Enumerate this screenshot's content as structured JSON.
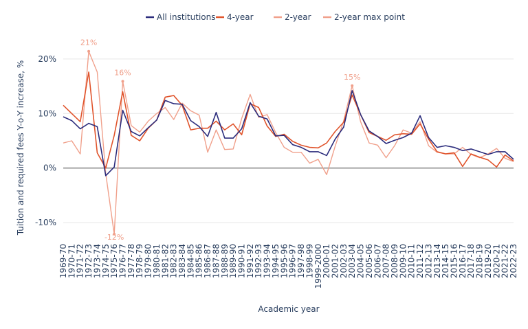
{
  "chart_data": {
    "type": "line",
    "title": "",
    "xlabel": "Academic year",
    "ylabel": "Tuition and required fees Y-o-Y increase, %",
    "ylim": [
      -13,
      23
    ],
    "yticks": [
      -10,
      0,
      10,
      20
    ],
    "ytick_labels": [
      "-10%",
      "0%",
      "10%",
      "20%"
    ],
    "grid": true,
    "legend_position": "top",
    "categories": [
      "1969-70",
      "1970-71",
      "1971-72",
      "1972-73",
      "1973-74",
      "1974-75",
      "1975-76",
      "1976-77",
      "1977-78",
      "1978-79",
      "1979-80",
      "1980-81",
      "1981-82",
      "1982-83",
      "1983-84",
      "1984-85",
      "1985-86",
      "1986-87",
      "1987-88",
      "1988-89",
      "1989-90",
      "1990-91",
      "1991-92",
      "1992-93",
      "1993-94",
      "1994-95",
      "1995-96",
      "1996-97",
      "1997-98",
      "1998-99",
      "1999-2000",
      "2000-01",
      "2001-02",
      "2002-03",
      "2003-04",
      "2004-05",
      "2005-06",
      "2006-07",
      "2007-08",
      "2008-09",
      "2009-10",
      "2010-11",
      "2011-12",
      "2012-13",
      "2013-14",
      "2014-15",
      "2015-16",
      "2016-17",
      "2017-18",
      "2018-19",
      "2019-20",
      "2020-21",
      "2021-22",
      "2022-23"
    ],
    "series": [
      {
        "name": "All institutions",
        "color": "#2b2c7c",
        "values": [
          9.4,
          8.7,
          7.2,
          8.2,
          7.6,
          -1.4,
          0.2,
          10.6,
          6.7,
          5.9,
          7.4,
          8.8,
          12.4,
          11.8,
          11.7,
          8.7,
          7.6,
          5.8,
          10.2,
          5.5,
          5.5,
          7.2,
          12.0,
          9.5,
          9.0,
          5.9,
          6.0,
          4.3,
          3.8,
          3.0,
          3.0,
          2.3,
          5.3,
          7.5,
          14.2,
          9.8,
          6.8,
          5.8,
          4.5,
          5.1,
          5.6,
          6.4,
          9.6,
          5.6,
          3.8,
          4.1,
          3.8,
          3.2,
          3.5,
          3.0,
          2.5,
          3.0,
          3.0,
          1.6
        ]
      },
      {
        "name": "4-year",
        "color": "#e0542c",
        "values": [
          11.5,
          10.0,
          8.5,
          17.6,
          2.8,
          0.0,
          6.0,
          14.0,
          6.0,
          5.0,
          7.3,
          8.8,
          13.0,
          13.3,
          11.5,
          7.0,
          7.3,
          7.3,
          8.6,
          7.0,
          8.1,
          6.1,
          11.8,
          11.1,
          7.7,
          5.8,
          6.2,
          4.9,
          4.2,
          3.8,
          3.7,
          4.6,
          6.7,
          8.4,
          13.4,
          9.8,
          6.5,
          5.8,
          5.1,
          6.1,
          6.3,
          6.2,
          8.1,
          5.3,
          3.0,
          2.6,
          2.8,
          0.3,
          2.6,
          2.0,
          1.5,
          0.2,
          2.4,
          1.3
        ]
      },
      {
        "name": "2-year",
        "color": "#f0a08b",
        "values": [
          4.6,
          5.0,
          2.6,
          21.4,
          17.6,
          -1.0,
          -12.1,
          15.9,
          7.8,
          6.6,
          8.6,
          10.0,
          11.1,
          8.9,
          11.9,
          10.5,
          9.7,
          2.9,
          7.0,
          3.4,
          3.5,
          9.1,
          13.5,
          9.3,
          9.8,
          6.5,
          3.8,
          2.9,
          2.9,
          0.9,
          1.6,
          -1.2,
          4.0,
          8.6,
          15.1,
          8.5,
          4.6,
          4.2,
          1.9,
          4.1,
          7.0,
          6.4,
          8.5,
          4.1,
          2.9,
          2.6,
          2.6,
          3.8,
          2.5,
          1.9,
          2.6,
          3.6,
          1.8,
          1.2
        ]
      }
    ],
    "max_points": {
      "name": "2-year max point",
      "color": "#f0a08b",
      "points": [
        {
          "x": "1972-73",
          "y": 21.4,
          "label": "21%"
        },
        {
          "x": "1975-76",
          "y": -12.1,
          "label": "-12%"
        },
        {
          "x": "1976-77",
          "y": 15.9,
          "label": "16%"
        },
        {
          "x": "2003-04",
          "y": 15.1,
          "label": "15%"
        }
      ]
    }
  }
}
